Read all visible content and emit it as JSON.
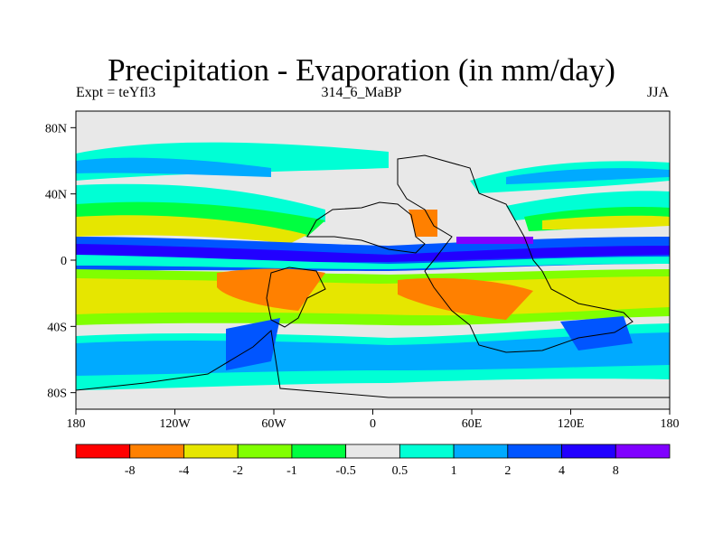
{
  "title": "Precipitation - Evaporation (in mm/day)",
  "subtitle_left": "Expt = teYfl3",
  "subtitle_center": "314_6_MaBP",
  "subtitle_right": "JJA",
  "map": {
    "lon_range": [
      -180,
      180
    ],
    "lat_range": [
      -90,
      90
    ],
    "x_ticks": [
      {
        "value": -180,
        "label": "180"
      },
      {
        "value": -120,
        "label": "120W"
      },
      {
        "value": -60,
        "label": "60W"
      },
      {
        "value": 0,
        "label": "0"
      },
      {
        "value": 60,
        "label": "60E"
      },
      {
        "value": 120,
        "label": "120E"
      },
      {
        "value": 180,
        "label": "180"
      }
    ],
    "y_ticks": [
      {
        "value": 80,
        "label": "80N"
      },
      {
        "value": 40,
        "label": "40N"
      },
      {
        "value": 0,
        "label": "0"
      },
      {
        "value": -40,
        "label": "40S"
      },
      {
        "value": -80,
        "label": "80S"
      }
    ],
    "background_color": "#e8e8e8"
  },
  "colorbar": {
    "colors": [
      "#ff0000",
      "#ff8000",
      "#e6e600",
      "#80ff00",
      "#00ff40",
      "#e8e8e8",
      "#00ffd5",
      "#00aaff",
      "#0055ff",
      "#2200ff",
      "#8000ff"
    ],
    "labels": [
      "-8",
      "-4",
      "-2",
      "-1",
      "-0.5",
      "0.5",
      "1",
      "2",
      "4",
      "8"
    ]
  }
}
